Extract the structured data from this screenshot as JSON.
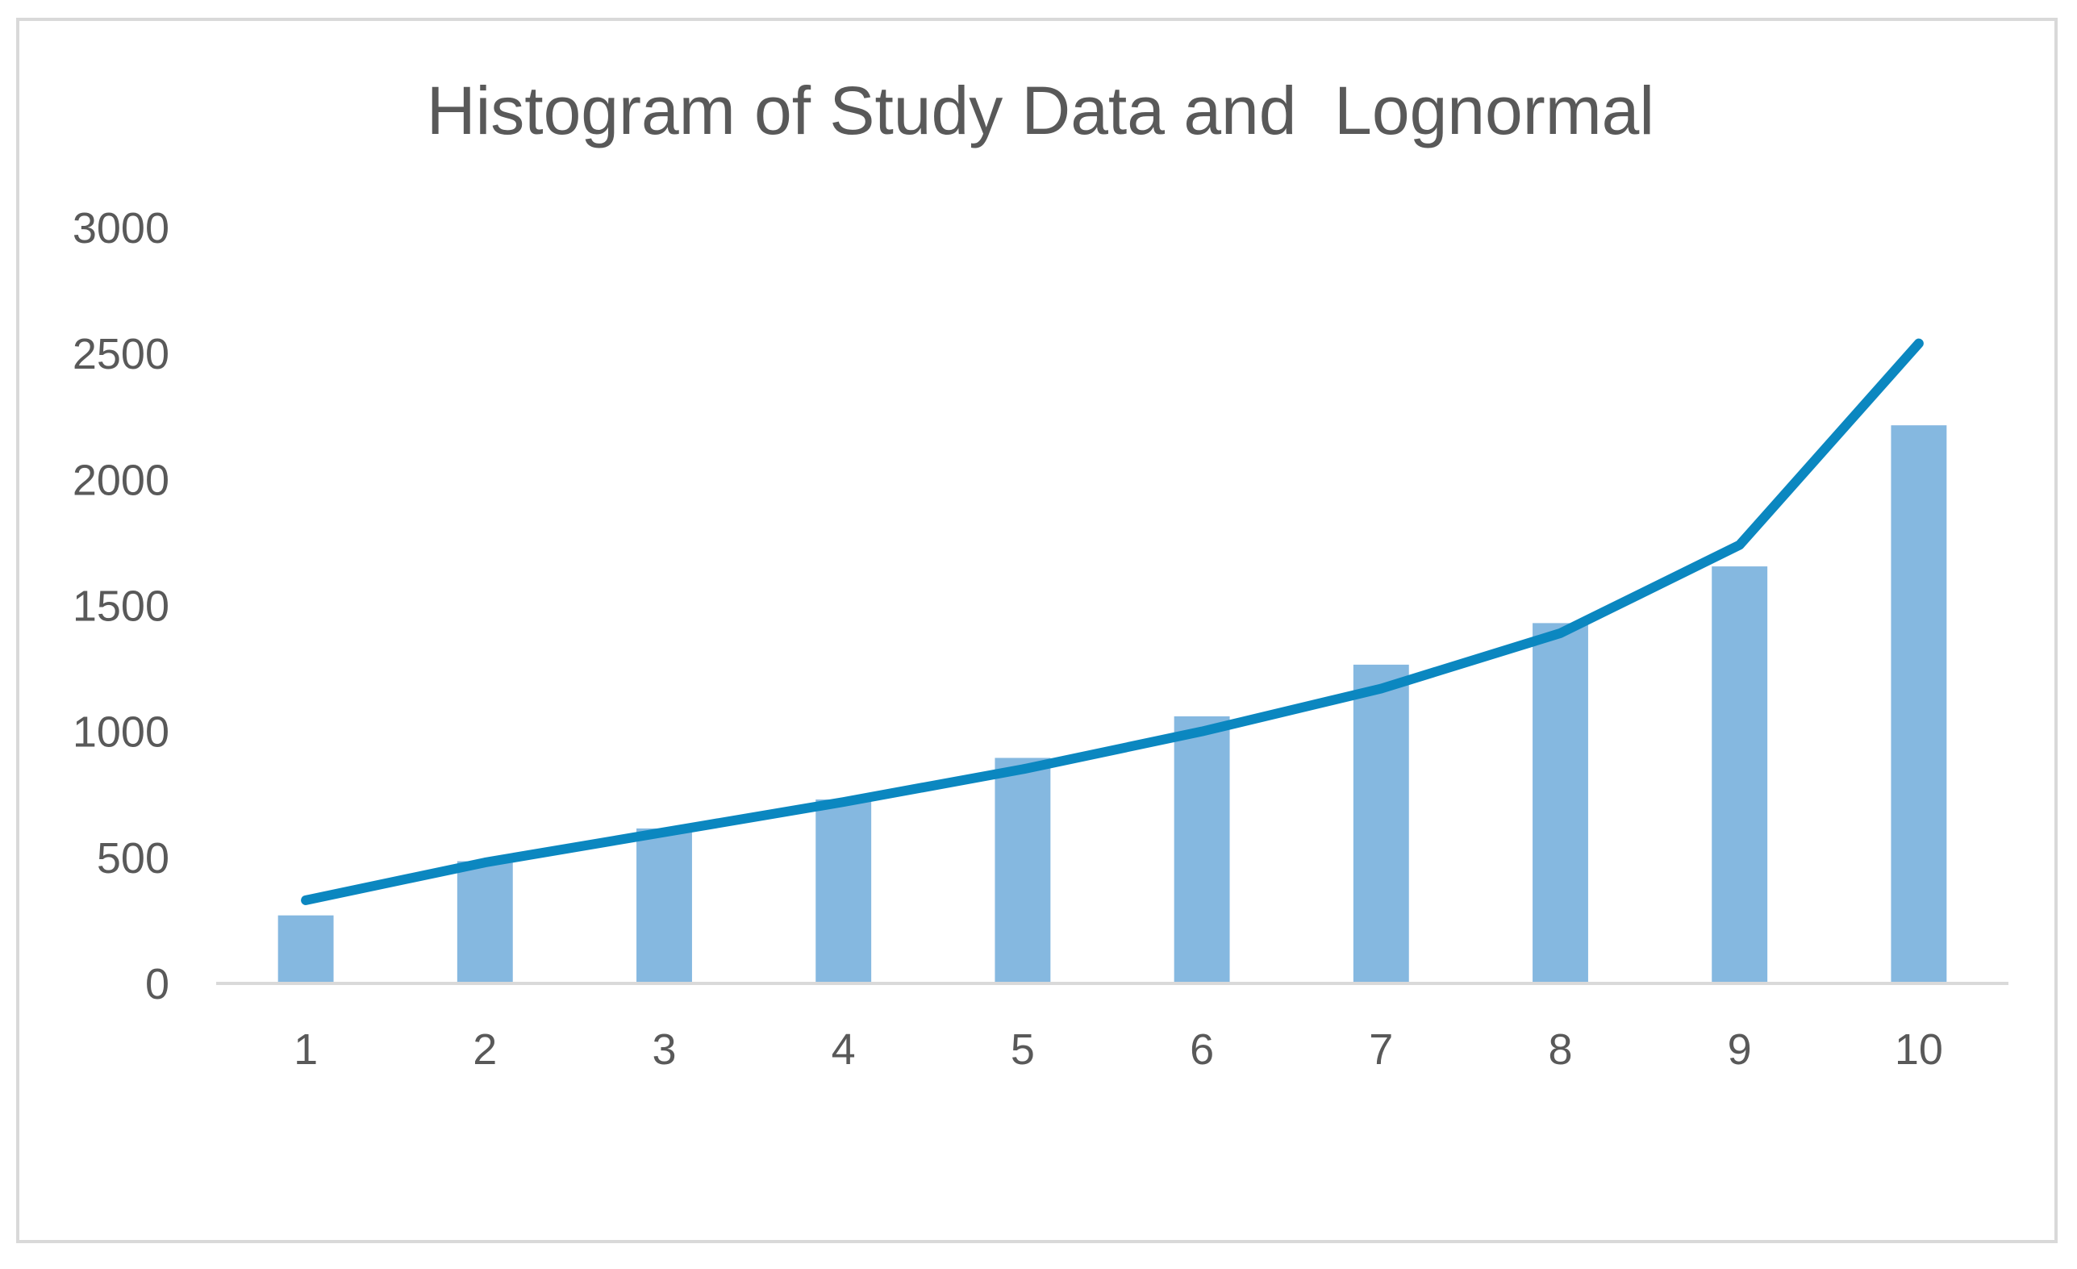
{
  "chart_data": {
    "type": "bar",
    "title": "Histogram of Study Data and  Lognormal",
    "xlabel": "",
    "ylabel": "",
    "categories": [
      "1",
      "2",
      "3",
      "4",
      "5",
      "6",
      "7",
      "8",
      "9",
      "10"
    ],
    "series": [
      {
        "kind": "bar",
        "color": "#85b8e0",
        "values": [
          270,
          485,
          615,
          730,
          895,
          1060,
          1265,
          1430,
          1655,
          2215
        ]
      },
      {
        "kind": "line",
        "color": "#0b87c0",
        "values": [
          330,
          480,
          600,
          720,
          850,
          1000,
          1170,
          1390,
          1740,
          2540
        ]
      }
    ],
    "ylim": [
      0,
      3000
    ],
    "yticks": [
      "0",
      "500",
      "1000",
      "1500",
      "2000",
      "2500",
      "3000"
    ],
    "grid": false,
    "legend": "none"
  }
}
